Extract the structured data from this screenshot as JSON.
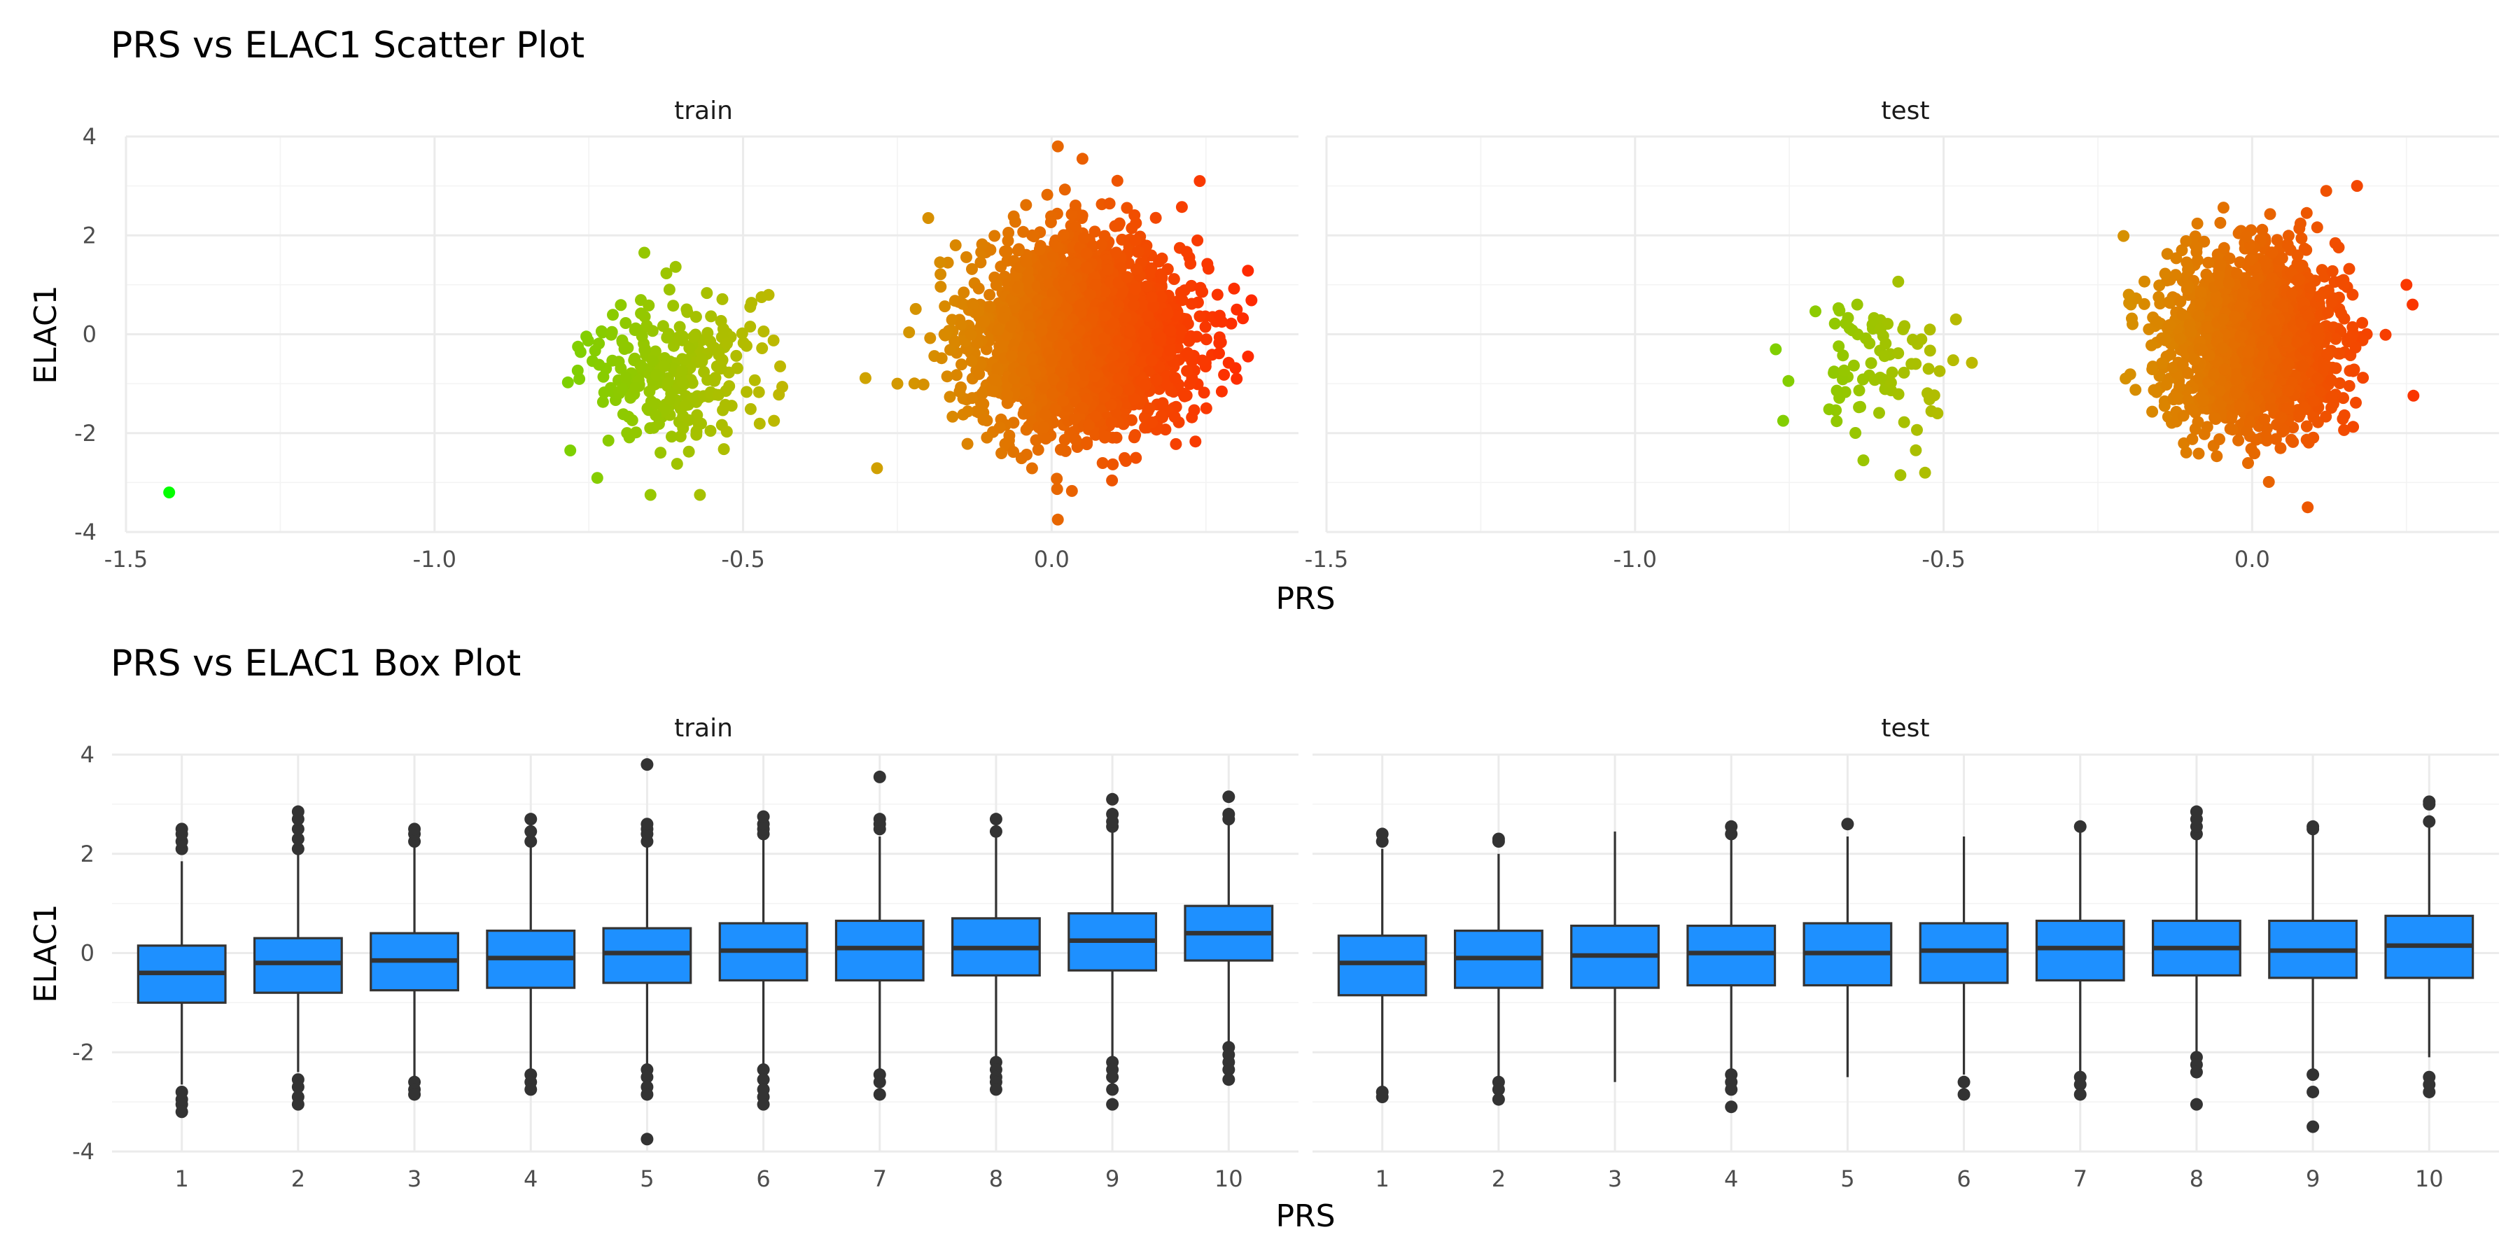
{
  "chart_data": [
    {
      "type": "scatter",
      "title": "PRS vs ELAC1 Scatter Plot",
      "xlabel": "PRS",
      "ylabel": "ELAC1",
      "facets": [
        "train",
        "test"
      ],
      "xlim": [
        -1.5,
        0.4
      ],
      "ylim": [
        -4,
        4
      ],
      "xticks": [
        -1.5,
        -1.0,
        -0.5,
        0.0
      ],
      "xtick_labels": [
        "-1.5",
        "-1.0",
        "-0.5",
        "0.0"
      ],
      "yticks": [
        -4,
        -2,
        0,
        2,
        4
      ],
      "ytick_labels": [
        "-4",
        "-2",
        "0",
        "2",
        "4"
      ],
      "grid": true,
      "color_scale": {
        "low": "#00ff00",
        "mid": "#c8b400",
        "high": "#ff2a00",
        "mapped_to": "PRS"
      },
      "panels": [
        {
          "facet": "train",
          "clusters": [
            {
              "x_center": 0.05,
              "y_center": -0.05,
              "x_spread": 0.085,
              "y_spread": 0.95,
              "n": 2600
            },
            {
              "x_center": -0.62,
              "y_center": -0.7,
              "x_spread": 0.07,
              "y_spread": 0.75,
              "n": 260
            }
          ],
          "points": [
            {
              "x": -1.43,
              "y": -3.2
            },
            {
              "x": 0.01,
              "y": 3.8
            },
            {
              "x": 0.05,
              "y": 3.55
            },
            {
              "x": 0.3,
              "y": 0.5
            },
            {
              "x": 0.01,
              "y": -3.75
            },
            {
              "x": -0.25,
              "y": -1.0
            },
            {
              "x": -0.2,
              "y": 2.35
            },
            {
              "x": 0.24,
              "y": 3.1
            },
            {
              "x": -0.66,
              "y": 1.65
            },
            {
              "x": -0.65,
              "y": -3.25
            },
            {
              "x": -0.57,
              "y": -3.25
            },
            {
              "x": -0.78,
              "y": -2.35
            },
            {
              "x": -0.47,
              "y": 0.75
            },
            {
              "x": -0.45,
              "y": -1.75
            },
            {
              "x": -0.44,
              "y": -0.65
            }
          ]
        },
        {
          "facet": "test",
          "clusters": [
            {
              "x_center": 0.0,
              "y_center": -0.1,
              "x_spread": 0.07,
              "y_spread": 0.85,
              "n": 1700
            },
            {
              "x_center": -0.6,
              "y_center": -0.8,
              "x_spread": 0.06,
              "y_spread": 0.75,
              "n": 80
            }
          ],
          "points": [
            {
              "x": 0.09,
              "y": -3.5
            },
            {
              "x": 0.26,
              "y": 0.6
            },
            {
              "x": 0.25,
              "y": 1.0
            },
            {
              "x": -0.2,
              "y": 0.8
            },
            {
              "x": 0.17,
              "y": 3.0
            },
            {
              "x": 0.12,
              "y": 2.9
            },
            {
              "x": -0.64,
              "y": 0.6
            },
            {
              "x": -0.76,
              "y": -1.75
            },
            {
              "x": -0.63,
              "y": -2.55
            },
            {
              "x": -0.57,
              "y": -2.85
            },
            {
              "x": -0.53,
              "y": -2.8
            },
            {
              "x": -0.48,
              "y": 0.3
            },
            {
              "x": -0.51,
              "y": -1.6
            }
          ]
        }
      ]
    },
    {
      "type": "box",
      "title": "PRS vs ELAC1 Box Plot",
      "xlabel": "PRS",
      "ylabel": "ELAC1",
      "facets": [
        "train",
        "test"
      ],
      "categories": [
        "1",
        "2",
        "3",
        "4",
        "5",
        "6",
        "7",
        "8",
        "9",
        "10"
      ],
      "ylim": [
        -4,
        4
      ],
      "yticks": [
        -4,
        -2,
        0,
        2,
        4
      ],
      "ytick_labels": [
        "-4",
        "-2",
        "0",
        "2",
        "4"
      ],
      "grid": true,
      "box_color": "#1e90ff",
      "panels": [
        {
          "facet": "train",
          "boxes": [
            {
              "q1": -1.0,
              "median": -0.4,
              "q3": 0.15,
              "lower_whisker": -2.65,
              "upper_whisker": 1.85,
              "outliers": [
                2.1,
                2.25,
                2.4,
                2.5,
                -2.8,
                -2.95,
                -3.05,
                -3.2
              ]
            },
            {
              "q1": -0.8,
              "median": -0.2,
              "q3": 0.3,
              "lower_whisker": -2.4,
              "upper_whisker": 2.0,
              "outliers": [
                2.1,
                2.3,
                2.5,
                2.7,
                2.85,
                -2.55,
                -2.7,
                -2.9,
                -3.05
              ]
            },
            {
              "q1": -0.75,
              "median": -0.15,
              "q3": 0.4,
              "lower_whisker": -2.5,
              "upper_whisker": 2.15,
              "outliers": [
                2.25,
                2.4,
                2.5,
                -2.6,
                -2.75,
                -2.85
              ]
            },
            {
              "q1": -0.7,
              "median": -0.1,
              "q3": 0.45,
              "lower_whisker": -2.35,
              "upper_whisker": 2.15,
              "outliers": [
                2.25,
                2.45,
                2.7,
                -2.45,
                -2.6,
                -2.75
              ]
            },
            {
              "q1": -0.6,
              "median": 0.0,
              "q3": 0.5,
              "lower_whisker": -2.25,
              "upper_whisker": 2.15,
              "outliers": [
                2.25,
                2.4,
                2.5,
                2.6,
                3.8,
                -2.35,
                -2.5,
                -2.7,
                -2.85,
                -3.75
              ]
            },
            {
              "q1": -0.55,
              "median": 0.05,
              "q3": 0.6,
              "lower_whisker": -2.25,
              "upper_whisker": 2.35,
              "outliers": [
                2.4,
                2.5,
                2.6,
                2.75,
                -2.35,
                -2.55,
                -2.75,
                -2.9,
                -3.05
              ]
            },
            {
              "q1": -0.55,
              "median": 0.1,
              "q3": 0.65,
              "lower_whisker": -2.35,
              "upper_whisker": 2.35,
              "outliers": [
                2.5,
                2.6,
                2.7,
                3.55,
                -2.45,
                -2.6,
                -2.85
              ]
            },
            {
              "q1": -0.45,
              "median": 0.1,
              "q3": 0.7,
              "lower_whisker": -2.1,
              "upper_whisker": 2.35,
              "outliers": [
                2.45,
                2.7,
                -2.2,
                -2.35,
                -2.5,
                -2.6,
                -2.75
              ]
            },
            {
              "q1": -0.35,
              "median": 0.25,
              "q3": 0.8,
              "lower_whisker": -2.1,
              "upper_whisker": 2.45,
              "outliers": [
                2.55,
                2.65,
                2.8,
                3.1,
                -2.2,
                -2.35,
                -2.5,
                -2.75,
                -3.05
              ]
            },
            {
              "q1": -0.15,
              "median": 0.4,
              "q3": 0.95,
              "lower_whisker": -1.8,
              "upper_whisker": 2.6,
              "outliers": [
                2.7,
                2.8,
                3.15,
                -1.9,
                -2.05,
                -2.2,
                -2.35,
                -2.55
              ]
            }
          ]
        },
        {
          "facet": "test",
          "boxes": [
            {
              "q1": -0.85,
              "median": -0.2,
              "q3": 0.35,
              "lower_whisker": -2.7,
              "upper_whisker": 2.1,
              "outliers": [
                2.25,
                2.4,
                -2.8,
                -2.9
              ]
            },
            {
              "q1": -0.7,
              "median": -0.1,
              "q3": 0.45,
              "lower_whisker": -2.5,
              "upper_whisker": 2.0,
              "outliers": [
                2.25,
                2.3,
                -2.6,
                -2.75,
                -2.95
              ]
            },
            {
              "q1": -0.7,
              "median": -0.05,
              "q3": 0.55,
              "lower_whisker": -2.6,
              "upper_whisker": 2.45,
              "outliers": []
            },
            {
              "q1": -0.65,
              "median": 0.0,
              "q3": 0.55,
              "lower_whisker": -2.35,
              "upper_whisker": 2.3,
              "outliers": [
                2.4,
                2.55,
                -2.45,
                -2.6,
                -2.75,
                -3.1
              ]
            },
            {
              "q1": -0.65,
              "median": 0.0,
              "q3": 0.6,
              "lower_whisker": -2.5,
              "upper_whisker": 2.35,
              "outliers": [
                2.6
              ]
            },
            {
              "q1": -0.6,
              "median": 0.05,
              "q3": 0.6,
              "lower_whisker": -2.45,
              "upper_whisker": 2.35,
              "outliers": [
                -2.6,
                -2.85
              ]
            },
            {
              "q1": -0.55,
              "median": 0.1,
              "q3": 0.65,
              "lower_whisker": -2.4,
              "upper_whisker": 2.45,
              "outliers": [
                2.55,
                -2.5,
                -2.65,
                -2.85
              ]
            },
            {
              "q1": -0.45,
              "median": 0.1,
              "q3": 0.65,
              "lower_whisker": -2.0,
              "upper_whisker": 2.3,
              "outliers": [
                2.4,
                2.55,
                2.7,
                2.85,
                -2.1,
                -2.25,
                -2.4,
                -3.05
              ]
            },
            {
              "q1": -0.5,
              "median": 0.05,
              "q3": 0.65,
              "lower_whisker": -2.35,
              "upper_whisker": 2.4,
              "outliers": [
                2.5,
                2.55,
                -2.45,
                -2.8,
                -3.5
              ]
            },
            {
              "q1": -0.5,
              "median": 0.15,
              "q3": 0.75,
              "lower_whisker": -2.1,
              "upper_whisker": 2.55,
              "outliers": [
                2.65,
                3.0,
                3.05,
                -2.5,
                -2.65,
                -2.8
              ]
            }
          ]
        }
      ]
    }
  ]
}
